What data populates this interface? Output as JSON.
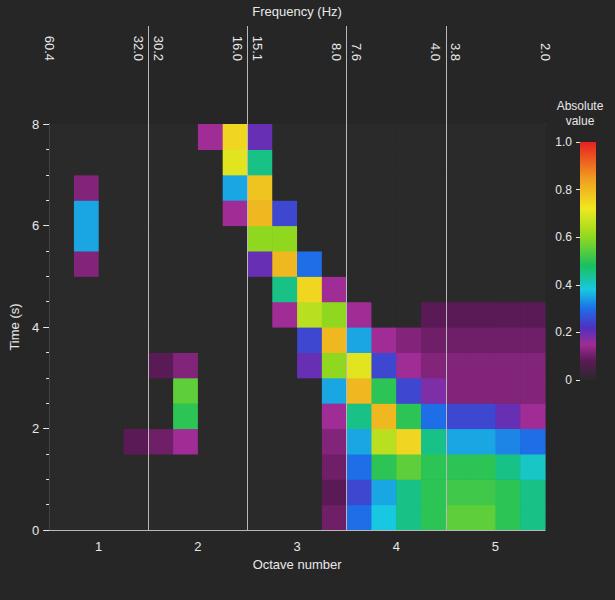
{
  "chart_data": {
    "type": "heatmap",
    "x_label": "Octave number",
    "x2_label": "Frequency (Hz)",
    "y_label": "Time (s)",
    "xlim": [
      0.5,
      5.5
    ],
    "xticks": [
      1,
      2,
      3,
      4,
      5
    ],
    "x2ticks": [
      {
        "value": 0.5,
        "label": "60.4"
      },
      {
        "value": 1.4,
        "label": "32.0"
      },
      {
        "value": 1.6,
        "label": "30.2"
      },
      {
        "value": 2.4,
        "label": "16.0"
      },
      {
        "value": 2.6,
        "label": "15.1"
      },
      {
        "value": 3.4,
        "label": "8.0"
      },
      {
        "value": 3.6,
        "label": "7.6"
      },
      {
        "value": 4.4,
        "label": "4.0"
      },
      {
        "value": 4.6,
        "label": "3.8"
      },
      {
        "value": 5.5,
        "label": "2.0"
      }
    ],
    "ylim": [
      0,
      8
    ],
    "yticks": [
      0,
      2,
      4,
      6,
      8
    ],
    "octave_boundaries": [
      1.5,
      2.5,
      3.5,
      4.5
    ],
    "x_edges": [
      0.5,
      0.75,
      1,
      1.25,
      1.5,
      1.75,
      2,
      2.25,
      2.5,
      2.75,
      3,
      3.25,
      3.5,
      3.75,
      4,
      4.25,
      4.5,
      4.75,
      5,
      5.25,
      5.5
    ],
    "y_edges": [
      0,
      0.5,
      1,
      1.5,
      2,
      2.5,
      3,
      3.5,
      4,
      4.5,
      5,
      5.5,
      6,
      6.5,
      7,
      7.5,
      8
    ],
    "z": [
      [
        0,
        0,
        0,
        0,
        0,
        0,
        0,
        0,
        0,
        0,
        0,
        0.1,
        0.3,
        0.38,
        0.45,
        0.5,
        0.55,
        0.55,
        0.5,
        0.45
      ],
      [
        0,
        0,
        0,
        0,
        0,
        0,
        0,
        0,
        0,
        0,
        0,
        0.08,
        0.25,
        0.35,
        0.45,
        0.5,
        0.52,
        0.52,
        0.5,
        0.45
      ],
      [
        0,
        0,
        0,
        0,
        0,
        0,
        0,
        0,
        0,
        0,
        0,
        0.1,
        0.3,
        0.5,
        0.55,
        0.5,
        0.5,
        0.5,
        0.45,
        0.4
      ],
      [
        0,
        0,
        0,
        0.08,
        0.1,
        0.15,
        0,
        0,
        0,
        0,
        0,
        0.12,
        0.35,
        0.65,
        0.75,
        0.45,
        0.35,
        0.35,
        0.32,
        0.3
      ],
      [
        0,
        0,
        0,
        0,
        0,
        0.5,
        0,
        0,
        0,
        0,
        0,
        0.15,
        0.45,
        0.8,
        0.5,
        0.3,
        0.25,
        0.25,
        0.2,
        0.15
      ],
      [
        0,
        0,
        0,
        0,
        0,
        0.55,
        0,
        0,
        0,
        0,
        0,
        0.35,
        0.8,
        0.5,
        0.25,
        0.18,
        0.12,
        0.12,
        0.12,
        0.12
      ],
      [
        0,
        0,
        0,
        0,
        0.08,
        0.12,
        0,
        0,
        0,
        0,
        0.2,
        0.6,
        0.7,
        0.25,
        0.15,
        0.12,
        0.12,
        0.12,
        0.12,
        0.12
      ],
      [
        0,
        0,
        0,
        0,
        0,
        0,
        0,
        0,
        0,
        0,
        0.25,
        0.8,
        0.35,
        0.15,
        0.12,
        0.1,
        0.1,
        0.1,
        0.1,
        0.1
      ],
      [
        0,
        0,
        0,
        0,
        0,
        0,
        0,
        0,
        0,
        0.15,
        0.65,
        0.6,
        0.15,
        0,
        0,
        0.08,
        0.08,
        0.08,
        0.08,
        0.08
      ],
      [
        0,
        0,
        0,
        0,
        0,
        0,
        0,
        0,
        0,
        0.45,
        0.75,
        0.15,
        0,
        0,
        0,
        0,
        0,
        0,
        0,
        0
      ],
      [
        0,
        0.12,
        0,
        0,
        0,
        0,
        0,
        0,
        0.2,
        0.8,
        0.3,
        0,
        0,
        0,
        0,
        0,
        0,
        0,
        0,
        0
      ],
      [
        0,
        0.35,
        0,
        0,
        0,
        0,
        0,
        0,
        0.6,
        0.6,
        0,
        0,
        0,
        0,
        0,
        0,
        0,
        0,
        0,
        0
      ],
      [
        0,
        0.35,
        0,
        0,
        0,
        0,
        0,
        0.15,
        0.8,
        0.25,
        0,
        0,
        0,
        0,
        0,
        0,
        0,
        0,
        0,
        0
      ],
      [
        0,
        0.12,
        0,
        0,
        0,
        0,
        0,
        0.35,
        0.78,
        0,
        0,
        0,
        0,
        0,
        0,
        0,
        0,
        0,
        0,
        0
      ],
      [
        0,
        0,
        0,
        0,
        0,
        0,
        0,
        0.7,
        0.45,
        0,
        0,
        0,
        0,
        0,
        0,
        0,
        0,
        0,
        0,
        0
      ],
      [
        0,
        0,
        0,
        0,
        0,
        0,
        0.15,
        0.75,
        0.2,
        0,
        0,
        0,
        0,
        0,
        0,
        0,
        0,
        0,
        0,
        0
      ]
    ],
    "colorbar": {
      "title": "Absolute value",
      "range": [
        0,
        1
      ],
      "ticks": [
        0,
        0.2,
        0.4,
        0.6,
        0.8,
        {
          "value": 1,
          "label": "1.0"
        }
      ]
    }
  }
}
